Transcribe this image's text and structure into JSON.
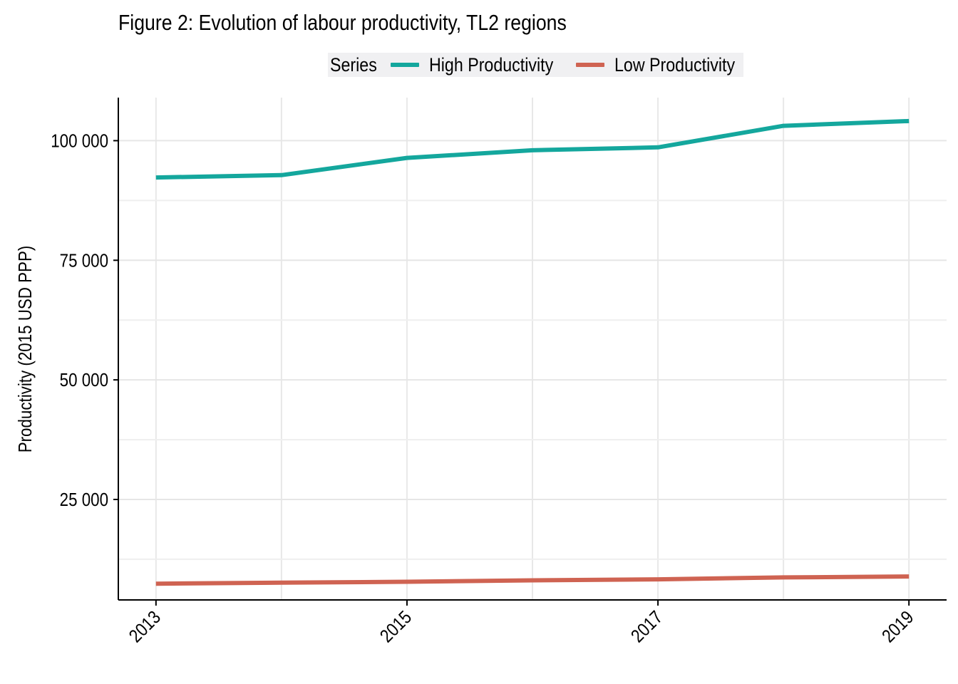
{
  "chart_data": {
    "type": "line",
    "title": "Figure 2: Evolution of labour productivity, TL2 regions",
    "xlabel": "",
    "ylabel": "Productivity (2015 USD PPP)",
    "legend": {
      "title": "Series",
      "position": "top"
    },
    "x": [
      2013,
      2014,
      2015,
      2016,
      2017,
      2018,
      2019
    ],
    "x_ticks": [
      "2013",
      "2015",
      "2017",
      "2019"
    ],
    "y_ticks": [
      "25 000",
      "50 000",
      "75 000",
      "100 000"
    ],
    "y_tick_values": [
      25000,
      50000,
      75000,
      100000
    ],
    "xlim": [
      2012.7,
      2019.3
    ],
    "ylim": [
      4000,
      109000
    ],
    "grid": true,
    "series": [
      {
        "name": "High Productivity",
        "color": "#14a79d",
        "values": [
          92300,
          92800,
          96400,
          98000,
          98600,
          103100,
          104100
        ]
      },
      {
        "name": "Low Productivity",
        "color": "#cf6352",
        "values": [
          7400,
          7600,
          7800,
          8100,
          8300,
          8700,
          8900
        ]
      }
    ]
  }
}
